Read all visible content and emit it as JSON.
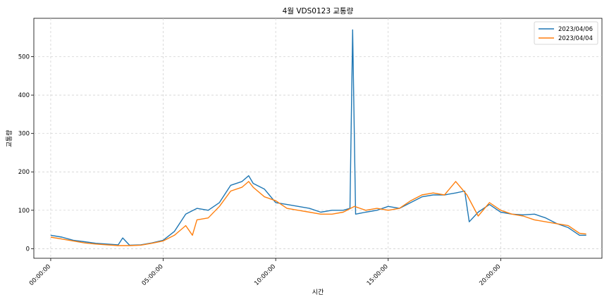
{
  "chart_data": {
    "type": "line",
    "title": "4월 VDS0123 교통량",
    "xlabel": "시간",
    "ylabel": "교통량",
    "xlim_hours": [
      -0.75,
      24.5
    ],
    "ylim": [
      -25,
      600
    ],
    "x_tick_labels": [
      "00:00:00",
      "05:00:00",
      "10:00:00",
      "15:00:00",
      "20:00:00"
    ],
    "y_ticks": [
      0,
      100,
      200,
      300,
      400,
      500
    ],
    "grid": true,
    "legend_position": "top-right",
    "series": [
      {
        "name": "2023/04/06",
        "color": "#1f77b4",
        "points": [
          [
            0.0,
            35
          ],
          [
            0.5,
            30
          ],
          [
            1.0,
            22
          ],
          [
            1.5,
            18
          ],
          [
            2.0,
            14
          ],
          [
            2.5,
            12
          ],
          [
            3.0,
            10
          ],
          [
            3.2,
            28
          ],
          [
            3.5,
            9
          ],
          [
            4.0,
            10
          ],
          [
            4.5,
            15
          ],
          [
            5.0,
            22
          ],
          [
            5.5,
            45
          ],
          [
            6.0,
            90
          ],
          [
            6.5,
            105
          ],
          [
            7.0,
            100
          ],
          [
            7.5,
            120
          ],
          [
            8.0,
            165
          ],
          [
            8.5,
            175
          ],
          [
            8.8,
            190
          ],
          [
            9.0,
            170
          ],
          [
            9.5,
            155
          ],
          [
            10.0,
            120
          ],
          [
            10.5,
            115
          ],
          [
            11.0,
            110
          ],
          [
            11.5,
            105
          ],
          [
            12.0,
            95
          ],
          [
            12.5,
            100
          ],
          [
            13.0,
            100
          ],
          [
            13.3,
            105
          ],
          [
            13.42,
            570
          ],
          [
            13.55,
            90
          ],
          [
            14.0,
            95
          ],
          [
            14.5,
            100
          ],
          [
            15.0,
            110
          ],
          [
            15.5,
            105
          ],
          [
            16.0,
            120
          ],
          [
            16.5,
            135
          ],
          [
            17.0,
            140
          ],
          [
            17.5,
            140
          ],
          [
            18.0,
            145
          ],
          [
            18.4,
            150
          ],
          [
            18.6,
            70
          ],
          [
            19.0,
            95
          ],
          [
            19.5,
            115
          ],
          [
            20.0,
            95
          ],
          [
            20.5,
            90
          ],
          [
            21.0,
            88
          ],
          [
            21.5,
            90
          ],
          [
            22.0,
            80
          ],
          [
            22.5,
            65
          ],
          [
            23.0,
            55
          ],
          [
            23.5,
            35
          ],
          [
            23.8,
            35
          ]
        ]
      },
      {
        "name": "2023/04/04",
        "color": "#ff7f0e",
        "points": [
          [
            0.0,
            30
          ],
          [
            0.5,
            25
          ],
          [
            1.0,
            20
          ],
          [
            1.5,
            15
          ],
          [
            2.0,
            12
          ],
          [
            2.5,
            10
          ],
          [
            3.0,
            8
          ],
          [
            3.5,
            8
          ],
          [
            4.0,
            9
          ],
          [
            4.5,
            14
          ],
          [
            5.0,
            20
          ],
          [
            5.5,
            35
          ],
          [
            6.0,
            60
          ],
          [
            6.3,
            35
          ],
          [
            6.5,
            75
          ],
          [
            7.0,
            80
          ],
          [
            7.5,
            110
          ],
          [
            8.0,
            150
          ],
          [
            8.5,
            160
          ],
          [
            8.8,
            175
          ],
          [
            9.0,
            160
          ],
          [
            9.5,
            135
          ],
          [
            10.0,
            125
          ],
          [
            10.5,
            105
          ],
          [
            11.0,
            100
          ],
          [
            11.5,
            95
          ],
          [
            12.0,
            90
          ],
          [
            12.5,
            90
          ],
          [
            13.0,
            95
          ],
          [
            13.5,
            110
          ],
          [
            14.0,
            100
          ],
          [
            14.5,
            105
          ],
          [
            15.0,
            100
          ],
          [
            15.5,
            105
          ],
          [
            16.0,
            125
          ],
          [
            16.5,
            140
          ],
          [
            17.0,
            145
          ],
          [
            17.5,
            140
          ],
          [
            18.0,
            175
          ],
          [
            18.5,
            140
          ],
          [
            19.0,
            85
          ],
          [
            19.5,
            120
          ],
          [
            20.0,
            100
          ],
          [
            20.5,
            90
          ],
          [
            21.0,
            85
          ],
          [
            21.5,
            75
          ],
          [
            22.0,
            70
          ],
          [
            22.5,
            65
          ],
          [
            23.0,
            60
          ],
          [
            23.5,
            40
          ],
          [
            23.8,
            38
          ]
        ]
      }
    ]
  }
}
